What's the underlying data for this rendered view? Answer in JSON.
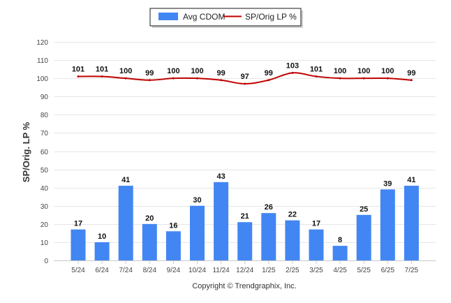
{
  "chart_data": {
    "type": "bar",
    "categories": [
      "5/24",
      "6/24",
      "7/24",
      "8/24",
      "9/24",
      "10/24",
      "11/24",
      "12/24",
      "1/25",
      "2/25",
      "3/25",
      "4/25",
      "5/25",
      "6/25",
      "7/25"
    ],
    "series": [
      {
        "name": "Avg CDOM",
        "type": "bar",
        "color": "#4286f4",
        "values": [
          17,
          10,
          41,
          20,
          16,
          30,
          43,
          21,
          26,
          22,
          17,
          8,
          25,
          39,
          41
        ]
      },
      {
        "name": "SP/Orig LP %",
        "type": "line",
        "color": "#c00000",
        "values": [
          101,
          101,
          100,
          99,
          100,
          100,
          99,
          97,
          99,
          103,
          101,
          100,
          100,
          100,
          99
        ]
      }
    ],
    "ylabel": "SP/Orig. LP %",
    "ylim": [
      0,
      120
    ],
    "yticks": [
      0,
      10,
      20,
      30,
      40,
      50,
      60,
      70,
      80,
      90,
      100,
      110,
      120
    ],
    "grid": true,
    "legend": "top-center"
  },
  "footer": "Copyright © Trendgraphix, Inc."
}
